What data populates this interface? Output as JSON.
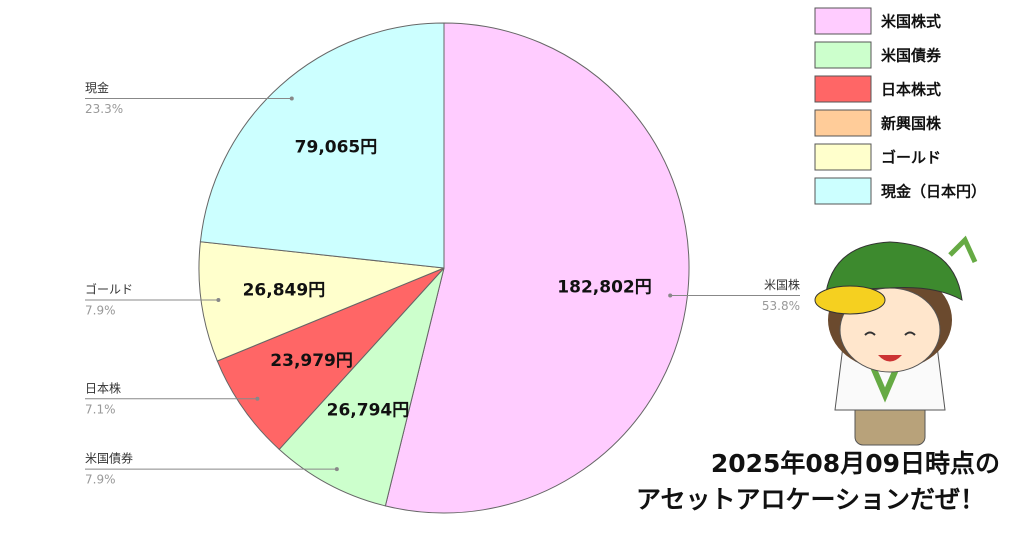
{
  "chart_data": {
    "type": "pie",
    "categories": [
      "米国株",
      "米国債券",
      "日本株",
      "ゴールド",
      "現金"
    ],
    "values": [
      182802,
      26794,
      23979,
      26849,
      79065
    ],
    "value_labels": [
      "182,802円",
      "26,794円",
      "23,979円",
      "26,849円",
      "79,065円"
    ],
    "percents": [
      53.8,
      7.9,
      7.1,
      7.9,
      23.3
    ],
    "percent_labels": [
      "53.8%",
      "7.9%",
      "7.1%",
      "7.9%",
      "23.3%"
    ],
    "colors": [
      "#ffccff",
      "#ccffcc",
      "#ff6666",
      "#ffffcc",
      "#ccffff"
    ],
    "legend": [
      {
        "name": "米国株式",
        "color": "#ffccff"
      },
      {
        "name": "米国債券",
        "color": "#ccffcc"
      },
      {
        "name": "日本株式",
        "color": "#ff6666"
      },
      {
        "name": "新興国株",
        "color": "#ffcc99"
      },
      {
        "name": "ゴールド",
        "color": "#ffffcc"
      },
      {
        "name": "現金（日本円）",
        "color": "#ccffff"
      }
    ],
    "annotations": [
      "2025年08月09日時点の",
      "アセットアロケーションだぜ！"
    ]
  }
}
